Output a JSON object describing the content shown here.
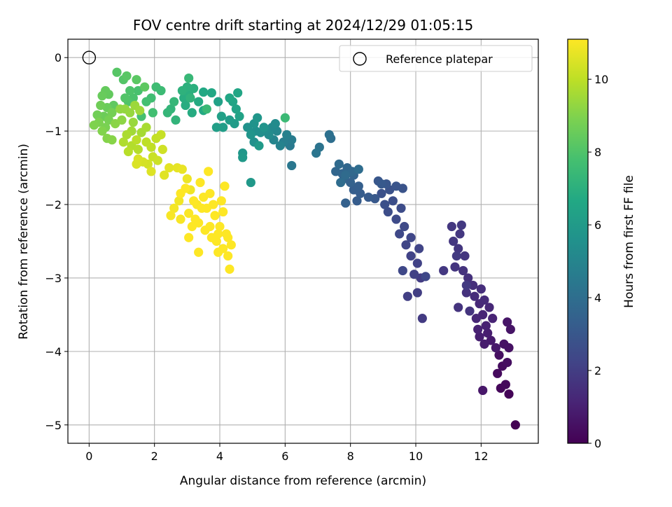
{
  "chart_data": {
    "type": "scatter",
    "title": "FOV centre drift starting at 2024/12/29 01:05:15",
    "xlabel": "Angular distance from reference (arcmin)",
    "ylabel": "Rotation from reference (arcmin)",
    "xlim": [
      -0.65,
      13.75
    ],
    "ylim": [
      -5.25,
      0.25
    ],
    "xticks": [
      0,
      2,
      4,
      6,
      8,
      10,
      12
    ],
    "yticks": [
      0,
      -1,
      -2,
      -3,
      -4,
      -5
    ],
    "grid": true,
    "colormap": "viridis",
    "colorbar": {
      "label": "Hours from first FF file",
      "range": [
        0,
        11.1
      ],
      "ticks": [
        0,
        2,
        4,
        6,
        8,
        10
      ]
    },
    "reference_point": {
      "name": "Reference platepar",
      "x": 0,
      "y": 0
    },
    "legend": {
      "location": "upper right",
      "entries": [
        "Reference platepar"
      ]
    },
    "points": [
      [
        13.05,
        -5.0,
        0.0
      ],
      [
        12.85,
        -4.58,
        0.1
      ],
      [
        12.6,
        -4.5,
        0.2
      ],
      [
        12.75,
        -4.45,
        0.25
      ],
      [
        12.5,
        -4.3,
        0.3
      ],
      [
        12.65,
        -4.2,
        0.35
      ],
      [
        12.8,
        -4.15,
        0.4
      ],
      [
        12.55,
        -4.05,
        0.45
      ],
      [
        12.85,
        -3.95,
        0.5
      ],
      [
        12.7,
        -3.9,
        0.55
      ],
      [
        12.9,
        -3.7,
        0.6
      ],
      [
        12.8,
        -3.6,
        0.65
      ],
      [
        12.05,
        -4.53,
        0.7
      ],
      [
        12.45,
        -3.95,
        0.75
      ],
      [
        12.3,
        -3.85,
        0.8
      ],
      [
        12.1,
        -3.9,
        0.85
      ],
      [
        12.2,
        -3.75,
        0.9
      ],
      [
        11.95,
        -3.8,
        0.95
      ],
      [
        12.15,
        -3.65,
        1.0
      ],
      [
        11.9,
        -3.7,
        1.05
      ],
      [
        12.35,
        -3.55,
        1.1
      ],
      [
        12.05,
        -3.5,
        1.15
      ],
      [
        11.85,
        -3.55,
        1.2
      ],
      [
        12.25,
        -3.4,
        1.25
      ],
      [
        11.95,
        -3.35,
        1.3
      ],
      [
        12.1,
        -3.3,
        1.35
      ],
      [
        11.8,
        -3.25,
        1.4
      ],
      [
        12.0,
        -3.15,
        1.45
      ],
      [
        11.75,
        -3.1,
        1.5
      ],
      [
        11.6,
        -3.0,
        1.55
      ],
      [
        11.55,
        -3.2,
        1.6
      ],
      [
        11.45,
        -2.9,
        1.62
      ],
      [
        11.3,
        -3.4,
        1.65
      ],
      [
        11.65,
        -3.45,
        1.68
      ],
      [
        11.2,
        -2.85,
        1.7
      ],
      [
        11.5,
        -2.7,
        1.72
      ],
      [
        11.3,
        -2.6,
        1.74
      ],
      [
        11.15,
        -2.5,
        1.76
      ],
      [
        11.35,
        -2.4,
        1.78
      ],
      [
        11.1,
        -2.3,
        1.8
      ],
      [
        10.85,
        -2.9,
        1.82
      ],
      [
        11.4,
        -2.28,
        1.84
      ],
      [
        11.25,
        -2.7,
        1.86
      ],
      [
        11.55,
        -3.1,
        1.88
      ],
      [
        10.2,
        -3.55,
        1.9
      ],
      [
        10.15,
        -3.0,
        1.95
      ],
      [
        10.05,
        -3.2,
        2.0
      ],
      [
        9.75,
        -3.25,
        2.05
      ],
      [
        9.95,
        -2.95,
        2.1
      ],
      [
        10.05,
        -2.8,
        2.15
      ],
      [
        9.85,
        -2.7,
        2.2
      ],
      [
        10.1,
        -2.6,
        2.25
      ],
      [
        9.7,
        -2.55,
        2.3
      ],
      [
        9.85,
        -2.45,
        2.35
      ],
      [
        9.6,
        -2.9,
        2.38
      ],
      [
        10.3,
        -2.98,
        2.4
      ],
      [
        9.5,
        -2.4,
        2.42
      ],
      [
        9.65,
        -2.3,
        2.45
      ],
      [
        9.4,
        -2.2,
        2.5
      ],
      [
        9.55,
        -2.05,
        2.55
      ],
      [
        9.15,
        -2.1,
        2.6
      ],
      [
        9.3,
        -1.95,
        2.65
      ],
      [
        9.05,
        -2.0,
        2.7
      ],
      [
        8.95,
        -1.85,
        2.75
      ],
      [
        9.2,
        -1.8,
        2.8
      ],
      [
        9.6,
        -1.78,
        2.85
      ],
      [
        9.4,
        -1.75,
        2.9
      ],
      [
        9.1,
        -1.72,
        2.95
      ],
      [
        8.85,
        -1.68,
        3.0
      ],
      [
        8.75,
        -1.92,
        3.05
      ],
      [
        8.95,
        -1.72,
        3.1
      ],
      [
        8.55,
        -1.9,
        3.15
      ],
      [
        8.2,
        -1.95,
        3.2
      ],
      [
        8.3,
        -1.85,
        3.25
      ],
      [
        8.1,
        -1.8,
        3.3
      ],
      [
        8.25,
        -1.75,
        3.35
      ],
      [
        7.85,
        -1.98,
        3.4
      ],
      [
        8.0,
        -1.7,
        3.45
      ],
      [
        7.8,
        -1.65,
        3.5
      ],
      [
        8.1,
        -1.6,
        3.55
      ],
      [
        7.75,
        -1.58,
        3.6
      ],
      [
        7.55,
        -1.55,
        3.65
      ],
      [
        7.9,
        -1.5,
        3.7
      ],
      [
        8.05,
        -1.55,
        3.75
      ],
      [
        7.65,
        -1.45,
        3.8
      ],
      [
        7.85,
        -1.6,
        3.85
      ],
      [
        7.7,
        -1.7,
        3.9
      ],
      [
        8.25,
        -1.52,
        3.95
      ],
      [
        7.4,
        -1.1,
        4.0
      ],
      [
        7.35,
        -1.05,
        4.1
      ],
      [
        7.05,
        -1.22,
        4.2
      ],
      [
        6.95,
        -1.3,
        4.3
      ],
      [
        6.2,
        -1.47,
        4.4
      ],
      [
        6.15,
        -1.2,
        4.5
      ],
      [
        6.2,
        -1.12,
        4.6
      ],
      [
        5.95,
        -1.15,
        4.7
      ],
      [
        6.05,
        -1.05,
        4.8
      ],
      [
        5.85,
        -1.2,
        4.9
      ],
      [
        5.65,
        -1.12,
        5.0
      ],
      [
        5.75,
        -1.0,
        5.1
      ],
      [
        5.6,
        -0.95,
        5.2
      ],
      [
        5.7,
        -0.9,
        5.3
      ],
      [
        5.5,
        -1.05,
        5.35
      ],
      [
        5.4,
        -0.98,
        5.4
      ],
      [
        5.25,
        -1.02,
        5.45
      ],
      [
        5.1,
        -1.0,
        5.5
      ],
      [
        5.05,
        -1.15,
        5.55
      ],
      [
        4.85,
        -0.95,
        5.6
      ],
      [
        5.05,
        -0.9,
        5.65
      ],
      [
        5.35,
        -0.95,
        5.7
      ],
      [
        4.95,
        -1.05,
        5.75
      ],
      [
        5.15,
        -0.82,
        5.8
      ],
      [
        4.7,
        -1.3,
        5.85
      ],
      [
        4.95,
        -1.7,
        5.9
      ],
      [
        4.7,
        -1.36,
        5.95
      ],
      [
        5.2,
        -1.2,
        6.0
      ],
      [
        4.45,
        -0.9,
        6.05
      ],
      [
        4.3,
        -0.85,
        6.1
      ],
      [
        4.1,
        -0.95,
        6.15
      ],
      [
        3.9,
        -0.95,
        6.2
      ],
      [
        4.05,
        -0.8,
        6.25
      ],
      [
        3.95,
        -0.6,
        6.3
      ],
      [
        4.6,
        -0.8,
        6.35
      ],
      [
        4.5,
        -0.7,
        6.4
      ],
      [
        4.4,
        -0.6,
        6.45
      ],
      [
        4.55,
        -0.48,
        6.5
      ],
      [
        4.3,
        -0.55,
        6.55
      ],
      [
        3.75,
        -0.48,
        6.6
      ],
      [
        3.5,
        -0.47,
        6.65
      ],
      [
        3.5,
        -0.72,
        6.7
      ],
      [
        3.35,
        -0.6,
        6.75
      ],
      [
        3.15,
        -0.75,
        6.8
      ],
      [
        2.95,
        -0.65,
        6.85
      ],
      [
        2.9,
        -0.55,
        6.9
      ],
      [
        3.05,
        -0.5,
        6.95
      ],
      [
        3.2,
        -0.42,
        7.0
      ],
      [
        3.0,
        -0.4,
        7.05
      ],
      [
        2.85,
        -0.45,
        7.1
      ],
      [
        3.1,
        -0.55,
        7.15
      ],
      [
        2.65,
        -0.85,
        7.2
      ],
      [
        2.5,
        -0.7,
        7.25
      ],
      [
        2.4,
        -0.75,
        7.3
      ],
      [
        2.6,
        -0.6,
        7.35
      ],
      [
        3.05,
        -0.28,
        7.4
      ],
      [
        3.6,
        -0.7,
        7.45
      ],
      [
        6.0,
        -0.82,
        7.5
      ],
      [
        2.2,
        -0.45,
        7.55
      ],
      [
        2.05,
        -0.4,
        7.6
      ],
      [
        1.9,
        -0.55,
        7.65
      ],
      [
        1.95,
        -0.75,
        7.7
      ],
      [
        1.75,
        -0.6,
        7.75
      ],
      [
        1.6,
        -0.8,
        7.8
      ],
      [
        1.5,
        -0.45,
        7.85
      ],
      [
        1.35,
        -0.55,
        7.9
      ],
      [
        1.25,
        -0.45,
        7.95
      ],
      [
        1.2,
        -0.6,
        8.0
      ],
      [
        1.1,
        -0.55,
        8.05
      ],
      [
        1.05,
        -0.3,
        8.1
      ],
      [
        0.85,
        -0.2,
        8.15
      ],
      [
        1.15,
        -0.25,
        8.2
      ],
      [
        1.45,
        -0.3,
        8.25
      ],
      [
        1.7,
        -0.4,
        8.3
      ],
      [
        0.75,
        -0.65,
        8.35
      ],
      [
        0.6,
        -0.5,
        8.4
      ],
      [
        0.5,
        -0.45,
        8.45
      ],
      [
        0.4,
        -0.52,
        8.5
      ],
      [
        0.55,
        -0.68,
        8.55
      ],
      [
        0.45,
        -0.8,
        8.6
      ],
      [
        0.35,
        -0.65,
        8.65
      ],
      [
        0.25,
        -0.78,
        8.7
      ],
      [
        0.7,
        -0.75,
        8.75
      ],
      [
        0.6,
        -0.85,
        8.8
      ],
      [
        0.5,
        -0.95,
        8.85
      ],
      [
        0.3,
        -0.88,
        8.9
      ],
      [
        0.15,
        -0.92,
        8.95
      ],
      [
        0.4,
        -1.0,
        9.0
      ],
      [
        0.55,
        -1.1,
        9.05
      ],
      [
        0.7,
        -1.12,
        9.1
      ],
      [
        0.8,
        -0.9,
        9.15
      ],
      [
        1.0,
        -0.85,
        9.2
      ],
      [
        0.95,
        -0.7,
        9.25
      ],
      [
        1.1,
        -0.7,
        9.3
      ],
      [
        1.25,
        -0.75,
        9.35
      ],
      [
        1.35,
        -0.88,
        9.4
      ],
      [
        1.4,
        -0.65,
        9.45
      ],
      [
        1.55,
        -0.72,
        9.5
      ],
      [
        1.3,
        -1.0,
        9.55
      ],
      [
        1.6,
        -1.02,
        9.6
      ],
      [
        1.75,
        -0.95,
        9.65
      ],
      [
        1.15,
        -1.05,
        9.7
      ],
      [
        1.05,
        -1.15,
        9.75
      ],
      [
        1.3,
        -1.2,
        9.8
      ],
      [
        1.5,
        -1.25,
        9.85
      ],
      [
        1.2,
        -1.28,
        9.9
      ],
      [
        1.45,
        -1.12,
        9.95
      ],
      [
        1.75,
        -1.15,
        10.0
      ],
      [
        1.9,
        -1.22,
        10.05
      ],
      [
        2.05,
        -1.1,
        10.1
      ],
      [
        2.2,
        -1.05,
        10.15
      ],
      [
        1.95,
        -1.35,
        10.2
      ],
      [
        2.1,
        -1.4,
        10.25
      ],
      [
        2.25,
        -1.25,
        10.3
      ],
      [
        1.8,
        -1.45,
        10.35
      ],
      [
        1.65,
        -1.42,
        10.4
      ],
      [
        1.5,
        -1.38,
        10.45
      ],
      [
        1.45,
        -1.45,
        10.5
      ],
      [
        1.9,
        -1.55,
        10.55
      ],
      [
        2.3,
        -1.6,
        10.6
      ],
      [
        2.45,
        -1.5,
        10.65
      ],
      [
        2.7,
        -1.5,
        10.7
      ],
      [
        2.85,
        -1.52,
        10.75
      ],
      [
        3.0,
        -1.65,
        10.8
      ],
      [
        3.1,
        -1.8,
        10.85
      ],
      [
        2.75,
        -1.95,
        10.9
      ],
      [
        2.6,
        -2.05,
        10.95
      ],
      [
        2.5,
        -2.15,
        11.0
      ],
      [
        2.8,
        -2.2,
        11.02
      ],
      [
        3.05,
        -2.12,
        11.04
      ],
      [
        3.3,
        -2.0,
        11.06
      ],
      [
        3.5,
        -1.9,
        11.08
      ],
      [
        3.7,
        -1.85,
        11.1
      ],
      [
        3.6,
        -2.05,
        11.1
      ],
      [
        3.85,
        -2.15,
        11.1
      ],
      [
        4.0,
        -2.3,
        11.1
      ],
      [
        4.2,
        -2.4,
        11.1
      ],
      [
        4.35,
        -2.55,
        11.1
      ],
      [
        4.25,
        -2.7,
        11.1
      ],
      [
        4.1,
        -2.6,
        11.1
      ],
      [
        3.9,
        -2.5,
        11.1
      ],
      [
        3.75,
        -2.45,
        11.1
      ],
      [
        3.55,
        -2.35,
        11.1
      ],
      [
        3.35,
        -2.25,
        11.1
      ],
      [
        3.15,
        -2.3,
        11.1
      ],
      [
        3.05,
        -2.45,
        11.1
      ],
      [
        3.35,
        -2.65,
        11.1
      ],
      [
        3.95,
        -2.65,
        11.1
      ],
      [
        4.3,
        -2.88,
        11.1
      ],
      [
        4.15,
        -1.75,
        11.1
      ],
      [
        4.05,
        -1.95,
        11.1
      ],
      [
        3.65,
        -1.55,
        11.1
      ],
      [
        3.4,
        -1.7,
        11.1
      ],
      [
        2.95,
        -1.78,
        11.1
      ],
      [
        2.8,
        -1.85,
        11.1
      ],
      [
        3.2,
        -1.95,
        11.1
      ],
      [
        3.45,
        -2.05,
        11.1
      ],
      [
        3.8,
        -2.0,
        11.1
      ],
      [
        4.1,
        -2.1,
        11.1
      ],
      [
        3.95,
        -2.4,
        11.1
      ],
      [
        4.25,
        -2.45,
        11.1
      ],
      [
        3.7,
        -2.3,
        11.1
      ],
      [
        3.25,
        -2.2,
        11.1
      ]
    ]
  }
}
